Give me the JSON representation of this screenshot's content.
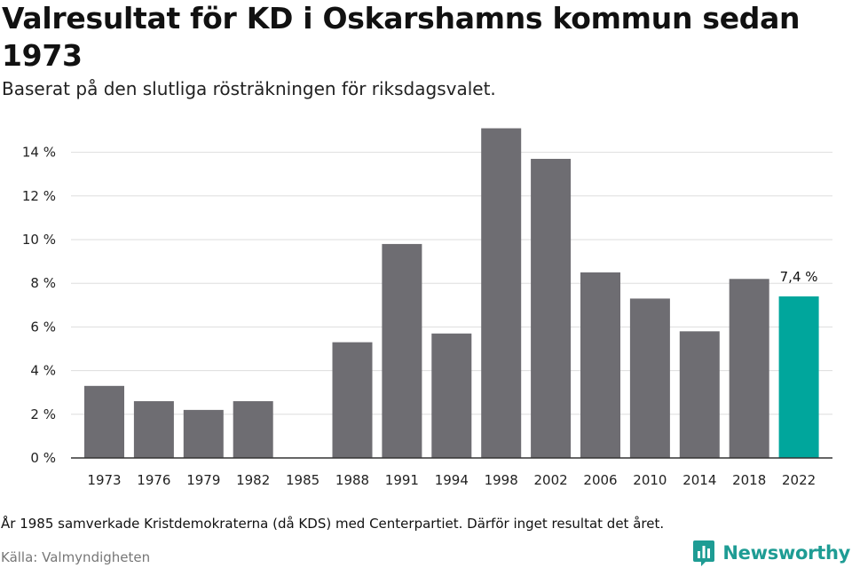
{
  "title": "Valresultat för KD i Oskarshamns kommun sedan 1973",
  "subtitle": "Baserat på den slutliga rösträkningen för riksdagsvalet.",
  "note": "År 1985 samverkade Kristdemokraterna (då KDS) med Centerpartiet. Därför inget resultat det året.",
  "source": "Källa: Valmyndigheten",
  "brand": "Newsworthy",
  "colors": {
    "bar": "#6e6d72",
    "highlight": "#00a69c",
    "grid": "#dddddd",
    "axis": "#333333",
    "brand": "#1e9c94"
  },
  "chart_data": {
    "type": "bar",
    "title": "Valresultat för KD i Oskarshamns kommun sedan 1973",
    "xlabel": "",
    "ylabel": "",
    "categories": [
      "1973",
      "1976",
      "1979",
      "1982",
      "1985",
      "1988",
      "1991",
      "1994",
      "1998",
      "2002",
      "2006",
      "2010",
      "2014",
      "2018",
      "2022"
    ],
    "values": [
      3.3,
      2.6,
      2.2,
      2.6,
      null,
      5.3,
      9.8,
      5.7,
      15.1,
      13.7,
      8.5,
      7.3,
      5.8,
      8.2,
      7.4
    ],
    "ylim": [
      0,
      15.5
    ],
    "yticks": [
      0,
      2,
      4,
      6,
      8,
      10,
      12,
      14
    ],
    "ytick_labels": [
      "0 %",
      "2 %",
      "4 %",
      "6 %",
      "8 %",
      "10 %",
      "12 %",
      "14 %"
    ],
    "highlight_category": "2022",
    "data_labels": [
      {
        "category": "2022",
        "text": "7,4 %"
      }
    ],
    "grid": true,
    "legend": "none"
  }
}
